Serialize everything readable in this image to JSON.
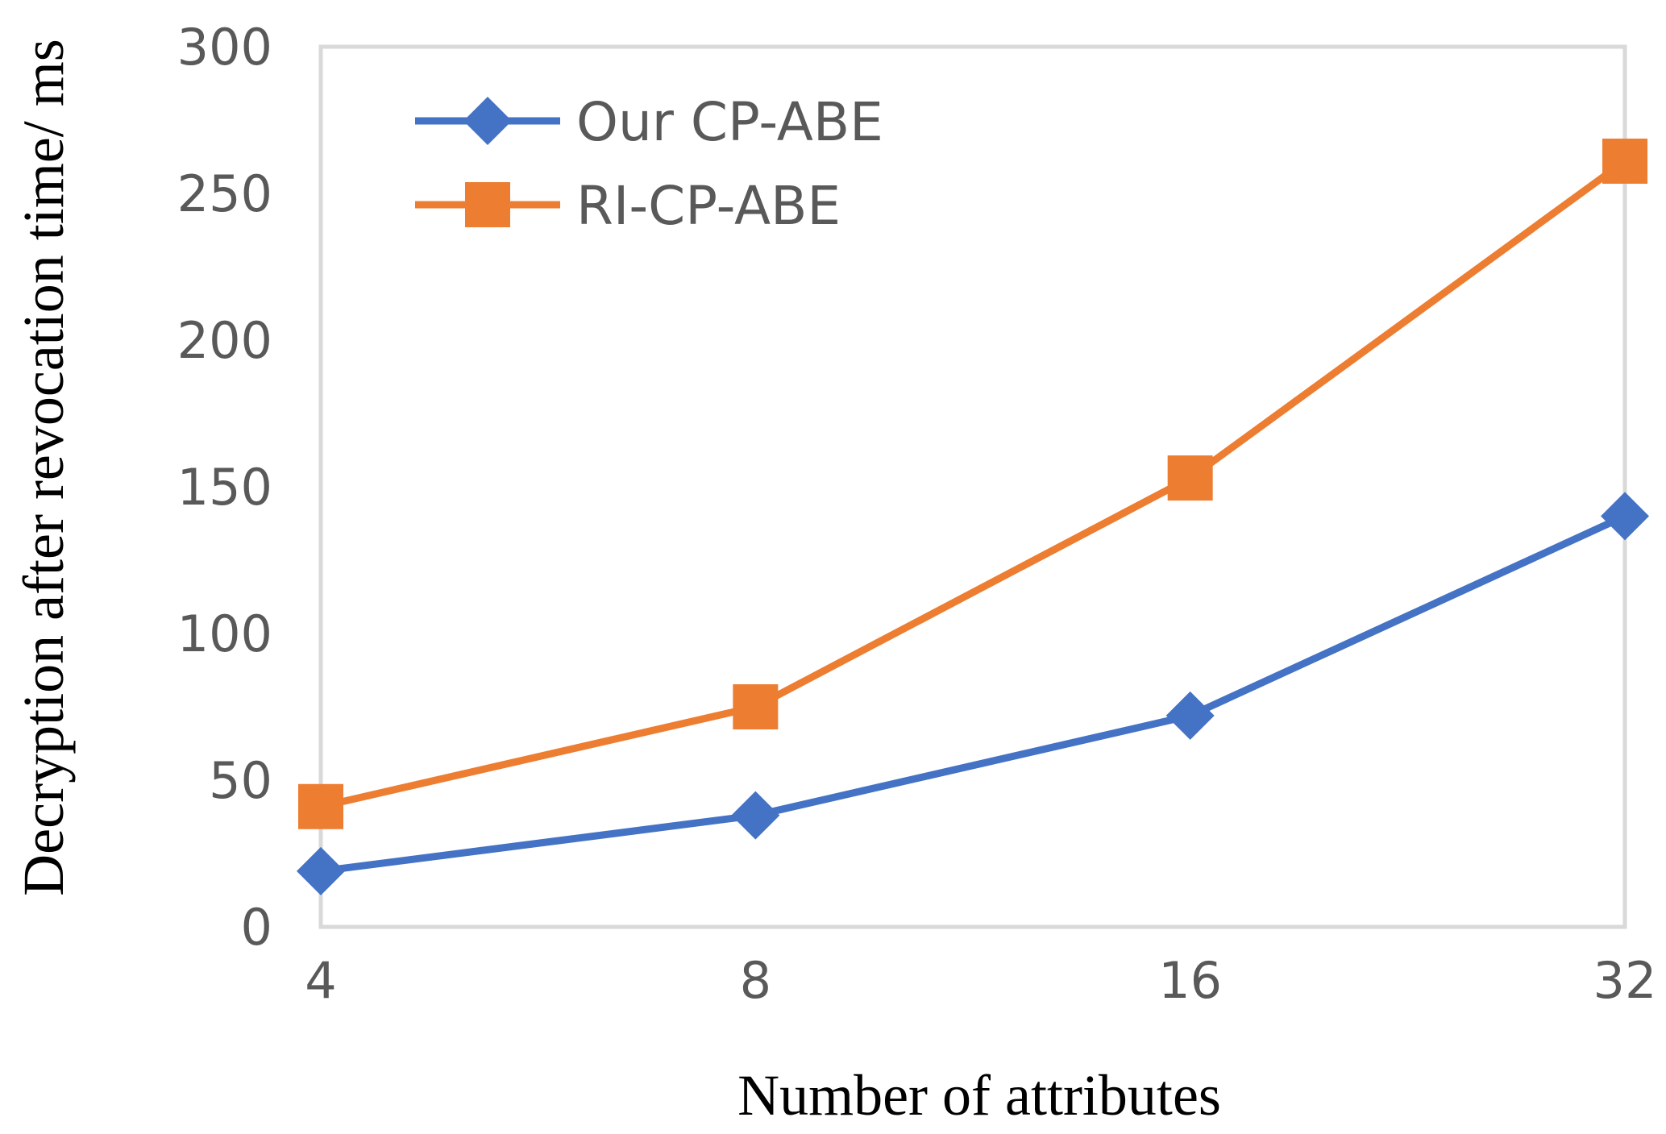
{
  "chart_data": {
    "type": "line",
    "title": "",
    "xlabel": "Number of attributes",
    "ylabel": "Decryption after revocation time/ ms",
    "categories": [
      "4",
      "8",
      "16",
      "32"
    ],
    "ylim": [
      0,
      300
    ],
    "yticks": [
      "0",
      "50",
      "100",
      "150",
      "200",
      "250",
      "300"
    ],
    "grid": false,
    "legend_position": "top-left",
    "series": [
      {
        "name": "Our CP-ABE",
        "marker": "diamond",
        "color": "#4472C4",
        "values": [
          19,
          38,
          72,
          140
        ]
      },
      {
        "name": "RI-CP-ABE",
        "marker": "square",
        "color": "#ED7D31",
        "values": [
          41,
          75,
          153,
          261
        ]
      }
    ]
  }
}
